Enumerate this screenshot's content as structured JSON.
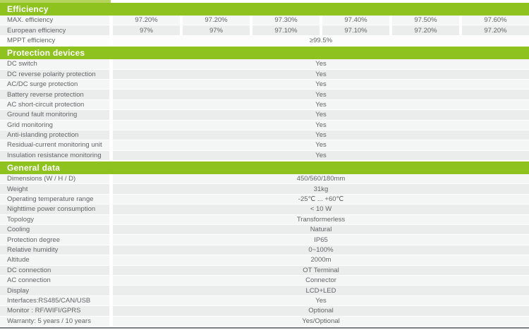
{
  "colors": {
    "header_green": "#8dc21f",
    "top_strip_green": "#b4d45e",
    "row_light": "#f4f6f5",
    "row_dark": "#ebedec",
    "text_gray": "#626467",
    "bottom_line_gray": "#7d8083"
  },
  "sections": {
    "efficiency": {
      "title": "Efficiency",
      "rows": [
        {
          "label": "MAX. efficiency",
          "values": [
            "97.20%",
            "97.20%",
            "97.30%",
            "97.40%",
            "97.50%",
            "97.60%"
          ]
        },
        {
          "label": "European efficiency",
          "values": [
            "97%",
            "97%",
            "97.10%",
            "97.10%",
            "97.20%",
            "97.20%"
          ]
        },
        {
          "label": "MPPT efficiency",
          "span_value": "≥99.5%"
        }
      ]
    },
    "protection": {
      "title": "Protection devices",
      "rows": [
        {
          "label": "DC switch",
          "value": "Yes"
        },
        {
          "label": "DC reverse polarity protection",
          "value": "Yes"
        },
        {
          "label": "AC/DC surge protection",
          "value": "Yes"
        },
        {
          "label": "Battery reverse protection",
          "value": "Yes"
        },
        {
          "label": "AC short-circuit protection",
          "value": "Yes"
        },
        {
          "label": "Ground fault monitoring",
          "value": "Yes"
        },
        {
          "label": "Grid monitoring",
          "value": "Yes"
        },
        {
          "label": "Anti-islanding protection",
          "value": "Yes"
        },
        {
          "label": "Residual-current monitoring unit",
          "value": "Yes"
        },
        {
          "label": "Insulation resistance monitoring",
          "value": "Yes"
        }
      ]
    },
    "general": {
      "title": "General data",
      "rows": [
        {
          "label": "Dimensions (W / H / D)",
          "value": "450/560/180mm"
        },
        {
          "label": "Weight",
          "value": "31kg"
        },
        {
          "label": "Operating temperature range",
          "value": "-25℃ ... +60℃"
        },
        {
          "label": "Nighttime power consumption",
          "value": "< 10 W"
        },
        {
          "label": "Topology",
          "value": "Transformerless"
        },
        {
          "label": "Cooling",
          "value": "Natural"
        },
        {
          "label": "Protection degree",
          "value": "IP65"
        },
        {
          "label": "Relative humidity",
          "value": "0~100%"
        },
        {
          "label": "Altitude",
          "value": "2000m"
        },
        {
          "label": "DC connection",
          "value": "OT Terminal"
        },
        {
          "label": "AC connection",
          "value": "Connector"
        },
        {
          "label": "Display",
          "value": "LCD+LED"
        },
        {
          "label": "Interfaces:RS485/CAN/USB",
          "value": "Yes"
        },
        {
          "label": "Monitor : RF/WIFI/GPRS",
          "value": "Optional"
        },
        {
          "label": "Warranty: 5 years / 10 years",
          "value": "Yes/Optional"
        }
      ]
    }
  }
}
